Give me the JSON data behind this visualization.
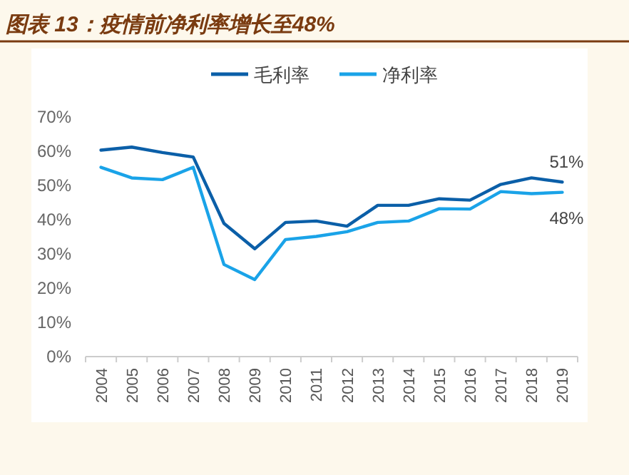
{
  "chart_data": {
    "type": "line",
    "title": "图表 13：疫情前净利率增长至48%",
    "categories": [
      "2004",
      "2005",
      "2006",
      "2007",
      "2008",
      "2009",
      "2010",
      "2011",
      "2012",
      "2013",
      "2014",
      "2015",
      "2016",
      "2017",
      "2018",
      "2019"
    ],
    "series": [
      {
        "name": "毛利率",
        "color": "#0b5fa8",
        "values": [
          60.3,
          61.2,
          59.6,
          58.3,
          38.9,
          31.5,
          39.2,
          39.6,
          38.1,
          44.2,
          44.2,
          46.1,
          45.7,
          50.3,
          52.2,
          51
        ]
      },
      {
        "name": "净利率",
        "color": "#1aa3e8",
        "values": [
          55.3,
          52.2,
          51.7,
          55.3,
          26.9,
          22.5,
          34.2,
          35.1,
          36.5,
          39.2,
          39.6,
          43.2,
          43.1,
          48.2,
          47.6,
          48
        ]
      }
    ],
    "ylim": [
      0,
      70
    ],
    "yticks": [
      {
        "value": 0,
        "label": "0%"
      },
      {
        "value": 10,
        "label": "10%"
      },
      {
        "value": 20,
        "label": "20%"
      },
      {
        "value": 30,
        "label": "30%"
      },
      {
        "value": 40,
        "label": "40%"
      },
      {
        "value": 50,
        "label": "50%"
      },
      {
        "value": 60,
        "label": "60%"
      },
      {
        "value": 70,
        "label": "70%"
      }
    ],
    "annotations": [
      {
        "text": "51%",
        "x": "2019",
        "y": 51
      },
      {
        "text": "48%",
        "x": "2019",
        "y": 48
      }
    ],
    "grid": false,
    "legend": "top",
    "marker": "none",
    "line_style": "solid"
  }
}
